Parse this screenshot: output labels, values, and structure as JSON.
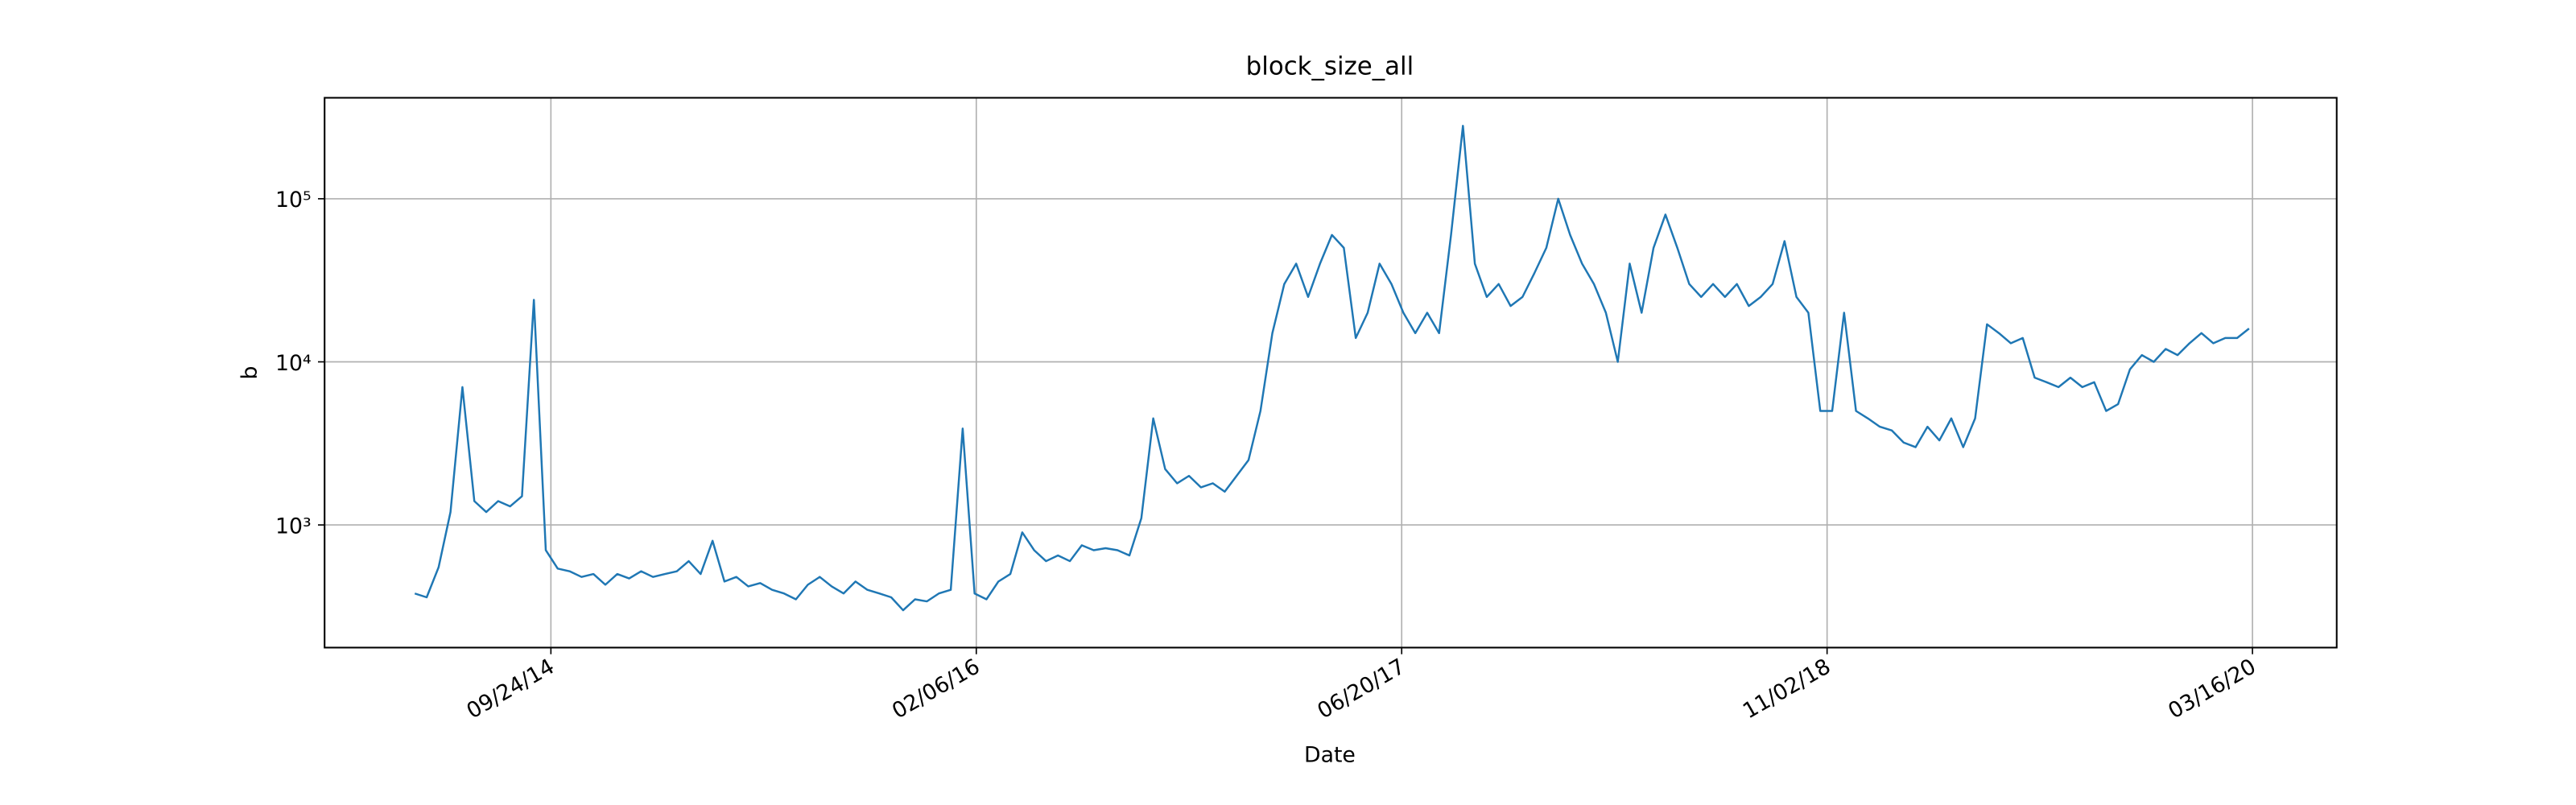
{
  "chart_data": {
    "type": "line",
    "title": "block_size_all",
    "x_label": "Date",
    "y_label": "b",
    "yscale": "log",
    "grid": true,
    "xlim": [
      "2014-01-01",
      "2020-06-23"
    ],
    "xticks": [
      {
        "value": "2014-09-24",
        "label": "09/24/14"
      },
      {
        "value": "2016-02-06",
        "label": "02/06/16"
      },
      {
        "value": "2017-06-20",
        "label": "06/20/17"
      },
      {
        "value": "2018-11-02",
        "label": "11/02/18"
      },
      {
        "value": "2020-03-16",
        "label": "03/16/20"
      }
    ],
    "ylim": [
      177,
      416000
    ],
    "yticks": [
      {
        "value": 1000,
        "label": "10³"
      },
      {
        "value": 10000,
        "label": "10⁴"
      },
      {
        "value": 100000,
        "label": "10⁵"
      }
    ],
    "x": [
      "2014-04-17",
      "2014-05-01",
      "2014-05-15",
      "2014-05-29",
      "2014-06-12",
      "2014-06-26",
      "2014-07-10",
      "2014-07-24",
      "2014-08-07",
      "2014-08-21",
      "2014-09-04",
      "2014-09-18",
      "2014-10-02",
      "2014-10-16",
      "2014-10-30",
      "2014-11-13",
      "2014-11-27",
      "2014-12-11",
      "2014-12-25",
      "2015-01-08",
      "2015-01-22",
      "2015-02-05",
      "2015-02-19",
      "2015-03-05",
      "2015-03-19",
      "2015-04-02",
      "2015-04-16",
      "2015-04-30",
      "2015-05-14",
      "2015-05-28",
      "2015-06-11",
      "2015-06-25",
      "2015-07-09",
      "2015-07-23",
      "2015-08-06",
      "2015-08-20",
      "2015-09-03",
      "2015-09-17",
      "2015-10-01",
      "2015-10-15",
      "2015-10-29",
      "2015-11-12",
      "2015-11-26",
      "2015-12-10",
      "2015-12-24",
      "2016-01-07",
      "2016-01-21",
      "2016-02-04",
      "2016-02-18",
      "2016-03-03",
      "2016-03-17",
      "2016-03-31",
      "2016-04-14",
      "2016-04-28",
      "2016-05-12",
      "2016-05-26",
      "2016-06-09",
      "2016-06-23",
      "2016-07-07",
      "2016-07-21",
      "2016-08-04",
      "2016-08-18",
      "2016-09-01",
      "2016-09-15",
      "2016-09-29",
      "2016-10-13",
      "2016-10-27",
      "2016-11-10",
      "2016-11-24",
      "2016-12-08",
      "2016-12-22",
      "2017-01-05",
      "2017-01-19",
      "2017-02-02",
      "2017-02-16",
      "2017-03-02",
      "2017-03-16",
      "2017-03-30",
      "2017-04-13",
      "2017-04-27",
      "2017-05-11",
      "2017-05-25",
      "2017-06-08",
      "2017-06-22",
      "2017-07-06",
      "2017-07-20",
      "2017-08-03",
      "2017-08-17",
      "2017-08-31",
      "2017-09-14",
      "2017-09-28",
      "2017-10-12",
      "2017-10-26",
      "2017-11-09",
      "2017-11-23",
      "2017-12-07",
      "2017-12-21",
      "2018-01-04",
      "2018-01-18",
      "2018-02-01",
      "2018-02-15",
      "2018-03-01",
      "2018-03-15",
      "2018-03-29",
      "2018-04-12",
      "2018-04-26",
      "2018-05-10",
      "2018-05-24",
      "2018-06-07",
      "2018-06-21",
      "2018-07-05",
      "2018-07-19",
      "2018-08-02",
      "2018-08-16",
      "2018-08-30",
      "2018-09-13",
      "2018-09-27",
      "2018-10-11",
      "2018-10-25",
      "2018-11-08",
      "2018-11-22",
      "2018-12-06",
      "2018-12-20",
      "2019-01-03",
      "2019-01-17",
      "2019-01-31",
      "2019-02-14",
      "2019-02-28",
      "2019-03-14",
      "2019-03-28",
      "2019-04-11",
      "2019-04-25",
      "2019-05-09",
      "2019-05-23",
      "2019-06-06",
      "2019-06-20",
      "2019-07-04",
      "2019-07-18",
      "2019-08-01",
      "2019-08-15",
      "2019-08-29",
      "2019-09-12",
      "2019-09-26",
      "2019-10-10",
      "2019-10-24",
      "2019-11-07",
      "2019-11-21",
      "2019-12-05",
      "2019-12-19",
      "2020-01-02",
      "2020-01-16",
      "2020-01-30",
      "2020-02-13",
      "2020-02-27",
      "2020-03-12"
    ],
    "series": [
      {
        "color": "#1f77b4",
        "values": [
          380,
          360,
          550,
          1200,
          7000,
          1400,
          1200,
          1400,
          1300,
          1500,
          24000,
          700,
          540,
          520,
          480,
          500,
          430,
          500,
          470,
          520,
          480,
          500,
          520,
          600,
          500,
          800,
          450,
          480,
          420,
          440,
          400,
          380,
          350,
          430,
          480,
          420,
          380,
          450,
          400,
          380,
          360,
          300,
          350,
          340,
          380,
          400,
          3900,
          380,
          350,
          450,
          500,
          900,
          700,
          600,
          650,
          600,
          750,
          700,
          720,
          700,
          650,
          1100,
          4500,
          2200,
          1800,
          2000,
          1700,
          1800,
          1600,
          2000,
          2500,
          5000,
          15000,
          30000,
          40000,
          25000,
          40000,
          60000,
          50000,
          14000,
          20000,
          40000,
          30000,
          20000,
          15000,
          20000,
          15000,
          60000,
          280000,
          40000,
          25000,
          30000,
          22000,
          25000,
          35000,
          50000,
          100000,
          60000,
          40000,
          30000,
          20000,
          10000,
          40000,
          20000,
          50000,
          80000,
          50000,
          30000,
          25000,
          30000,
          25000,
          30000,
          22000,
          25000,
          30000,
          55000,
          25000,
          20000,
          5000,
          5000,
          20000,
          5000,
          4500,
          4000,
          3800,
          3200,
          3000,
          4000,
          3300,
          4500,
          3000,
          4500,
          17000,
          15000,
          13000,
          14000,
          8000,
          7500,
          7000,
          8000,
          7000,
          7500,
          5000,
          5500,
          9000,
          11000,
          10000,
          12000,
          11000,
          13000,
          15000,
          13000,
          14000,
          14000,
          16000
        ]
      }
    ]
  }
}
